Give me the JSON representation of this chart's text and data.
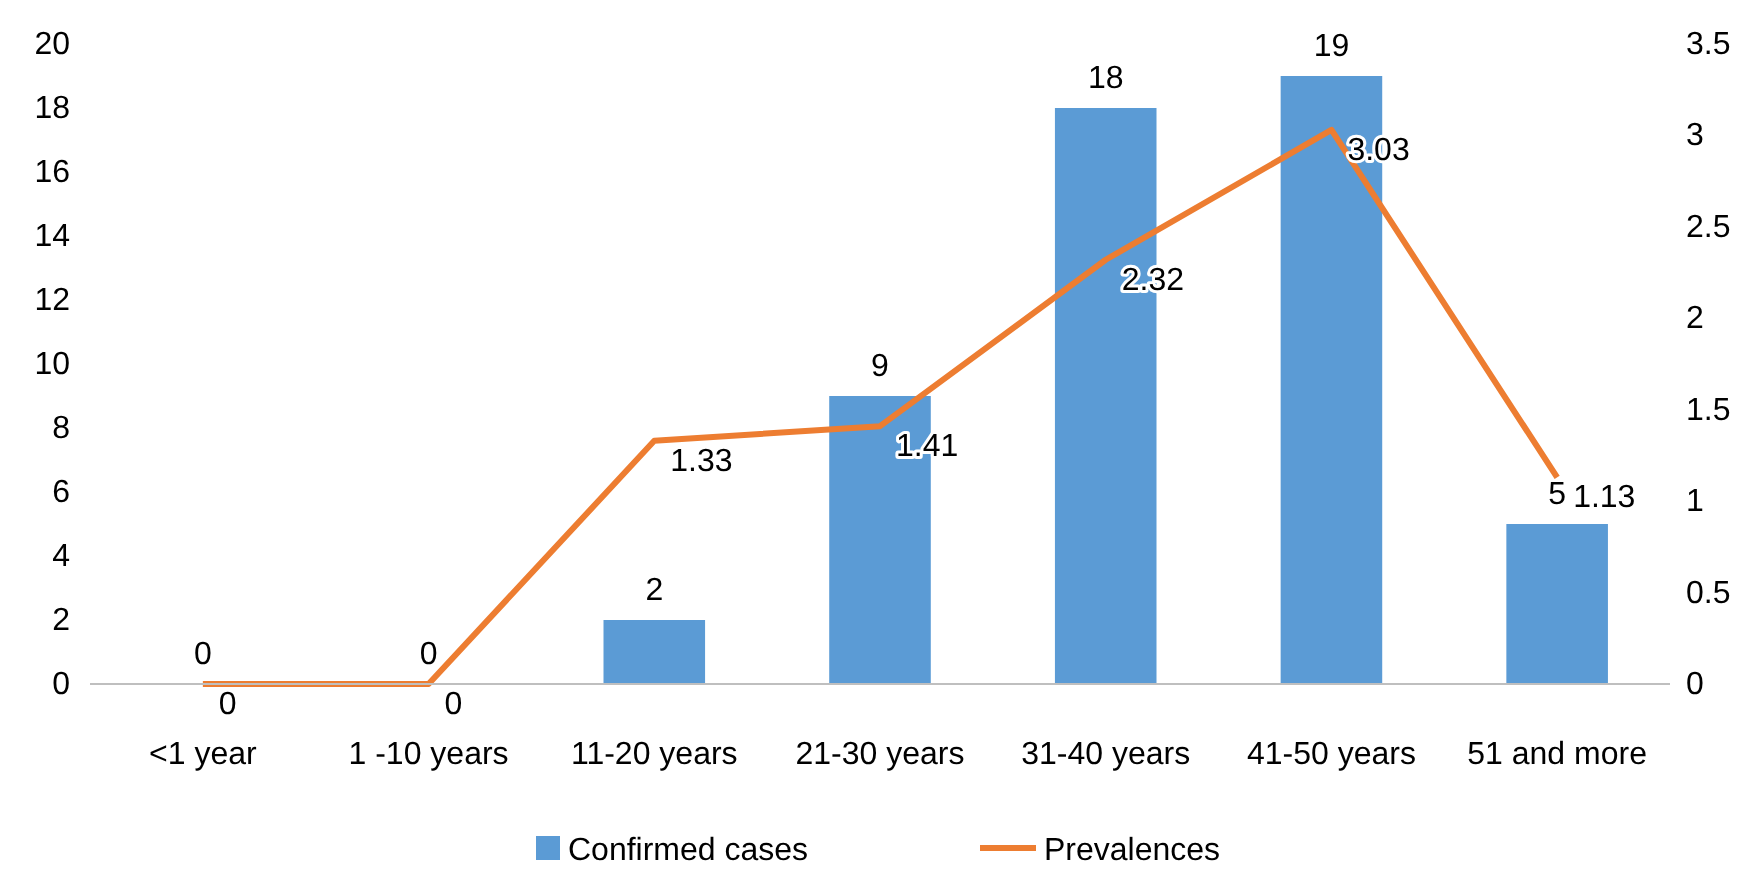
{
  "chart_data": {
    "type": "bar",
    "categories": [
      "<1 year",
      "1 -10 years",
      "11-20 years",
      "21-30 years",
      "31-40 years",
      "41-50 years",
      "51 and more"
    ],
    "series": [
      {
        "name": "Confirmed cases",
        "color": "#5b9bd5",
        "values": [
          0,
          0,
          2,
          9,
          18,
          19,
          5
        ]
      },
      {
        "name": "Prevalences",
        "type": "line",
        "axis": "y2",
        "color": "#ed7d31",
        "values": [
          0,
          0,
          1.33,
          1.41,
          2.32,
          3.03,
          1.13
        ]
      }
    ],
    "ylim": [
      0,
      20
    ],
    "yticks": [
      0,
      2,
      4,
      6,
      8,
      10,
      12,
      14,
      16,
      18,
      20
    ],
    "y2lim": [
      0,
      3.5
    ],
    "y2ticks": [
      0,
      0.5,
      1,
      1.5,
      2,
      2.5,
      3,
      3.5
    ],
    "data_labels": true,
    "legend": "bottom",
    "grid": false,
    "marker": "none",
    "line_style": "solid"
  }
}
